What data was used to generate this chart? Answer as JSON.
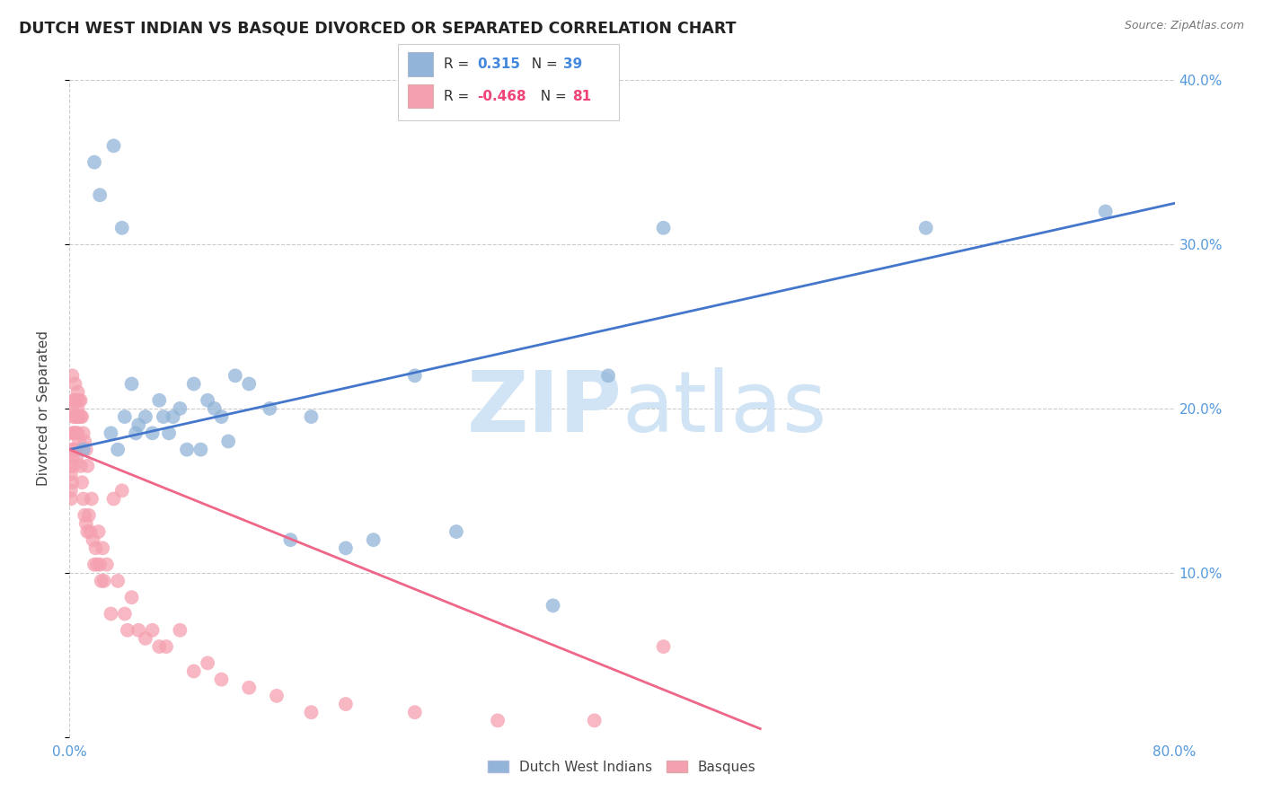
{
  "title": "DUTCH WEST INDIAN VS BASQUE DIVORCED OR SEPARATED CORRELATION CHART",
  "source": "Source: ZipAtlas.com",
  "ylabel": "Divorced or Separated",
  "xlim": [
    0,
    0.8
  ],
  "ylim": [
    0,
    0.4
  ],
  "blue_color": "#92B4D8",
  "pink_color": "#F5A0B0",
  "blue_line_color": "#4477CC",
  "pink_line_color": "#EE6688",
  "grid_color": "#CCCCCC",
  "watermark_color": "#D0E4F5",
  "blue_scatter_x": [
    0.01,
    0.018,
    0.022,
    0.03,
    0.032,
    0.035,
    0.038,
    0.04,
    0.045,
    0.048,
    0.05,
    0.055,
    0.06,
    0.065,
    0.068,
    0.072,
    0.075,
    0.08,
    0.085,
    0.09,
    0.095,
    0.1,
    0.105,
    0.11,
    0.115,
    0.12,
    0.13,
    0.145,
    0.16,
    0.175,
    0.2,
    0.22,
    0.25,
    0.28,
    0.35,
    0.39,
    0.43,
    0.62,
    0.75
  ],
  "blue_scatter_y": [
    0.175,
    0.35,
    0.33,
    0.185,
    0.36,
    0.175,
    0.31,
    0.195,
    0.215,
    0.185,
    0.19,
    0.195,
    0.185,
    0.205,
    0.195,
    0.185,
    0.195,
    0.2,
    0.175,
    0.215,
    0.175,
    0.205,
    0.2,
    0.195,
    0.18,
    0.22,
    0.215,
    0.2,
    0.12,
    0.195,
    0.115,
    0.12,
    0.22,
    0.125,
    0.08,
    0.22,
    0.31,
    0.31,
    0.32
  ],
  "pink_scatter_x": [
    0.001,
    0.001,
    0.001,
    0.001,
    0.001,
    0.002,
    0.002,
    0.002,
    0.002,
    0.002,
    0.003,
    0.003,
    0.003,
    0.003,
    0.003,
    0.004,
    0.004,
    0.004,
    0.004,
    0.004,
    0.005,
    0.005,
    0.005,
    0.005,
    0.006,
    0.006,
    0.006,
    0.006,
    0.007,
    0.007,
    0.007,
    0.008,
    0.008,
    0.008,
    0.009,
    0.009,
    0.01,
    0.01,
    0.011,
    0.011,
    0.012,
    0.012,
    0.013,
    0.013,
    0.014,
    0.015,
    0.016,
    0.017,
    0.018,
    0.019,
    0.02,
    0.021,
    0.022,
    0.023,
    0.024,
    0.025,
    0.027,
    0.03,
    0.032,
    0.035,
    0.038,
    0.04,
    0.042,
    0.045,
    0.05,
    0.055,
    0.06,
    0.065,
    0.07,
    0.08,
    0.09,
    0.1,
    0.11,
    0.13,
    0.15,
    0.175,
    0.2,
    0.25,
    0.31,
    0.38,
    0.43
  ],
  "pink_scatter_y": [
    0.165,
    0.15,
    0.175,
    0.16,
    0.145,
    0.22,
    0.2,
    0.185,
    0.17,
    0.155,
    0.205,
    0.195,
    0.185,
    0.175,
    0.165,
    0.215,
    0.205,
    0.195,
    0.185,
    0.175,
    0.205,
    0.195,
    0.185,
    0.17,
    0.21,
    0.2,
    0.195,
    0.185,
    0.205,
    0.195,
    0.18,
    0.205,
    0.195,
    0.165,
    0.195,
    0.155,
    0.185,
    0.145,
    0.18,
    0.135,
    0.175,
    0.13,
    0.165,
    0.125,
    0.135,
    0.125,
    0.145,
    0.12,
    0.105,
    0.115,
    0.105,
    0.125,
    0.105,
    0.095,
    0.115,
    0.095,
    0.105,
    0.075,
    0.145,
    0.095,
    0.15,
    0.075,
    0.065,
    0.085,
    0.065,
    0.06,
    0.065,
    0.055,
    0.055,
    0.065,
    0.04,
    0.045,
    0.035,
    0.03,
    0.025,
    0.015,
    0.02,
    0.015,
    0.01,
    0.01,
    0.055
  ],
  "blue_line_x": [
    0.0,
    0.8
  ],
  "blue_line_y": [
    0.175,
    0.325
  ],
  "pink_line_x": [
    0.0,
    0.5
  ],
  "pink_line_y": [
    0.175,
    0.005
  ]
}
